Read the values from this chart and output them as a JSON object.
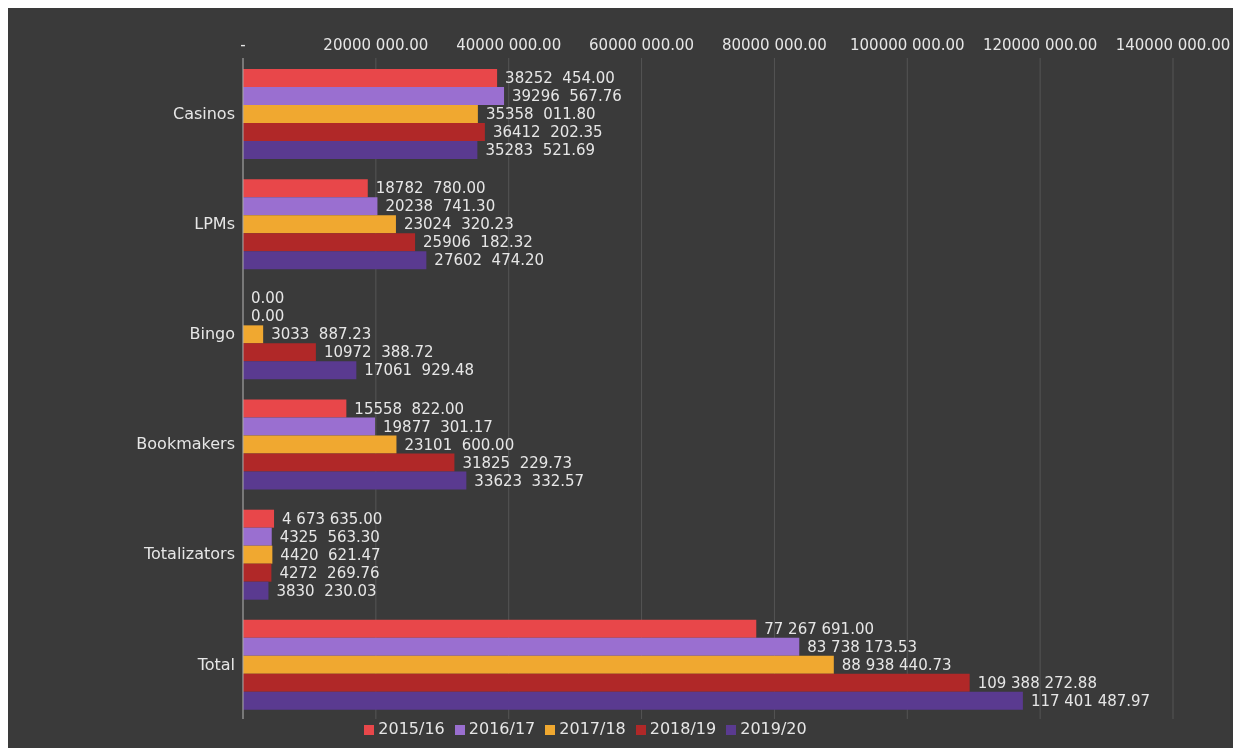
{
  "chart_data": {
    "type": "bar",
    "orientation": "horizontal",
    "categories": [
      "Casinos",
      "LPMs",
      "Bingo",
      "Bookmakers",
      "Totalizators",
      "Total"
    ],
    "series": [
      {
        "name": "2015/16",
        "color": "#e8474a",
        "values": [
          38252454.0,
          18782780.0,
          0.0,
          15558822.0,
          4673635.0,
          77267691.0
        ],
        "value_labels": [
          "38252  454.00",
          "18782  780.00",
          "0.00",
          "15558  822.00",
          "4 673 635.00",
          "77 267 691.00"
        ]
      },
      {
        "name": "2016/17",
        "color": "#9a6fd0",
        "values": [
          39296567.76,
          20238741.3,
          0.0,
          19877301.17,
          4325563.3,
          83738173.53
        ],
        "value_labels": [
          "39296  567.76",
          "20238  741.30",
          "0.00",
          "19877  301.17",
          "4325  563.30",
          "83 738 173.53"
        ]
      },
      {
        "name": "2017/18",
        "color": "#f0a830",
        "values": [
          35358011.8,
          23024320.23,
          3033887.23,
          23101600.0,
          4420621.47,
          88938440.73
        ],
        "value_labels": [
          "35358  011.80",
          "23024  320.23",
          "3033  887.23",
          "23101  600.00",
          "4420  621.47",
          "88 938 440.73"
        ]
      },
      {
        "name": "2018/19",
        "color": "#b02828",
        "values": [
          36412202.35,
          25906182.32,
          10972388.72,
          31825229.73,
          4272269.76,
          109388272.88
        ],
        "value_labels": [
          "36412  202.35",
          "25906  182.32",
          "10972  388.72",
          "31825  229.73",
          "4272  269.76",
          "109 388 272.88"
        ]
      },
      {
        "name": "2019/20",
        "color": "#5a3a90",
        "values": [
          35283521.69,
          27602474.2,
          17061929.48,
          33623332.57,
          3830230.03,
          117401487.97
        ],
        "value_labels": [
          "35283  521.69",
          "27602  474.20",
          "17061  929.48",
          "33623  332.57",
          "3830  230.03",
          "117 401 487.97"
        ]
      }
    ],
    "xlim": [
      0,
      140000000
    ],
    "xticks": [
      {
        "value": 0,
        "label": "-"
      },
      {
        "value": 20000000,
        "label": "20000 000.00"
      },
      {
        "value": 40000000,
        "label": "40000 000.00"
      },
      {
        "value": 60000000,
        "label": "60000 000.00"
      },
      {
        "value": 80000000,
        "label": "80000 000.00"
      },
      {
        "value": 100000000,
        "label": "100000 000.00"
      },
      {
        "value": 120000000,
        "label": "120000 000.00"
      },
      {
        "value": 140000000,
        "label": "140000 000.00"
      }
    ],
    "grid": "x",
    "legend": "bottom"
  }
}
